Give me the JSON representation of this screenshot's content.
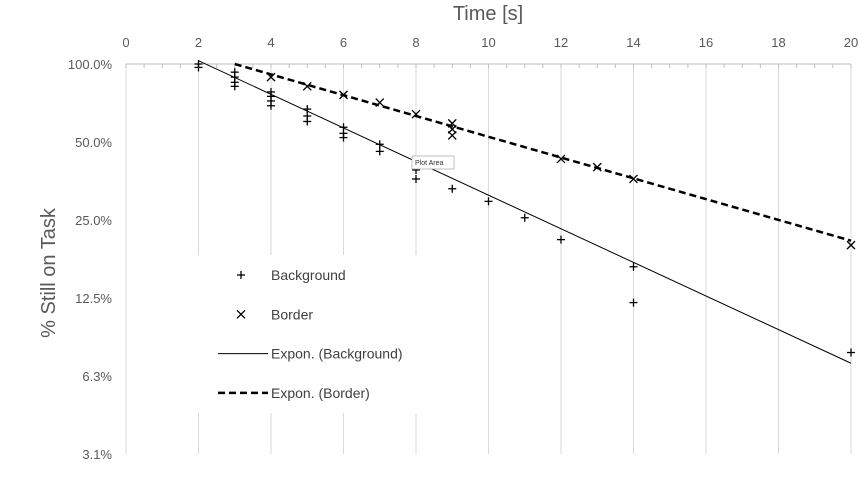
{
  "chart_data": {
    "type": "scatter",
    "xlabel": "Time [s]",
    "ylabel": "% Still on Task",
    "xlim": [
      0,
      20
    ],
    "ylim": [
      3.125,
      100
    ],
    "y_scale": "log2",
    "x_axis_position": "top",
    "x_ticks": [
      0,
      2,
      4,
      6,
      8,
      10,
      12,
      14,
      16,
      18,
      20
    ],
    "x_tick_labels": [
      "0",
      "2",
      "4",
      "6",
      "8",
      "10",
      "12",
      "14",
      "16",
      "18",
      "20"
    ],
    "y_ticks": [
      100,
      50,
      25,
      12.5,
      6.25,
      3.125
    ],
    "y_tick_labels": [
      "100.0%",
      "50.0%",
      "25.0%",
      "12.5%",
      "6.3%",
      "3.1%"
    ],
    "grid": "vertical",
    "legend_position": "left-center",
    "series": [
      {
        "name": "Background",
        "marker": "plus",
        "points": [
          [
            2,
            100
          ],
          [
            2,
            97
          ],
          [
            3,
            93
          ],
          [
            3,
            89
          ],
          [
            3,
            85
          ],
          [
            3,
            82
          ],
          [
            4,
            78
          ],
          [
            4,
            75
          ],
          [
            4,
            72
          ],
          [
            4,
            69
          ],
          [
            5,
            67
          ],
          [
            5,
            63
          ],
          [
            5,
            60
          ],
          [
            6,
            57
          ],
          [
            6,
            54
          ],
          [
            6,
            52
          ],
          [
            7,
            49
          ],
          [
            7,
            46
          ],
          [
            8,
            39
          ],
          [
            8,
            36
          ],
          [
            9,
            33
          ],
          [
            10,
            29.5
          ],
          [
            11,
            25.5
          ],
          [
            12,
            21
          ],
          [
            14,
            16.5
          ],
          [
            14,
            12
          ],
          [
            20,
            7.7
          ]
        ]
      },
      {
        "name": "Border",
        "marker": "x",
        "points": [
          [
            4,
            89
          ],
          [
            5,
            82
          ],
          [
            6,
            76
          ],
          [
            7,
            71
          ],
          [
            8,
            64
          ],
          [
            9,
            59
          ],
          [
            9,
            56
          ],
          [
            9,
            53
          ],
          [
            12,
            43
          ],
          [
            13,
            40
          ],
          [
            14,
            36
          ],
          [
            20,
            20
          ]
        ]
      }
    ],
    "trendlines": [
      {
        "name": "Expon. (Background)",
        "style": "solid",
        "x": [
          2,
          20
        ],
        "y": [
          103,
          7.0
        ]
      },
      {
        "name": "Expon. (Border)",
        "style": "dashed",
        "x": [
          3,
          20
        ],
        "y": [
          100,
          20.8
        ]
      }
    ],
    "tooltip": "Plot Area"
  },
  "colors": {
    "axis_text": "#595959",
    "grid": "#d9d9d9",
    "series": "#000000"
  }
}
